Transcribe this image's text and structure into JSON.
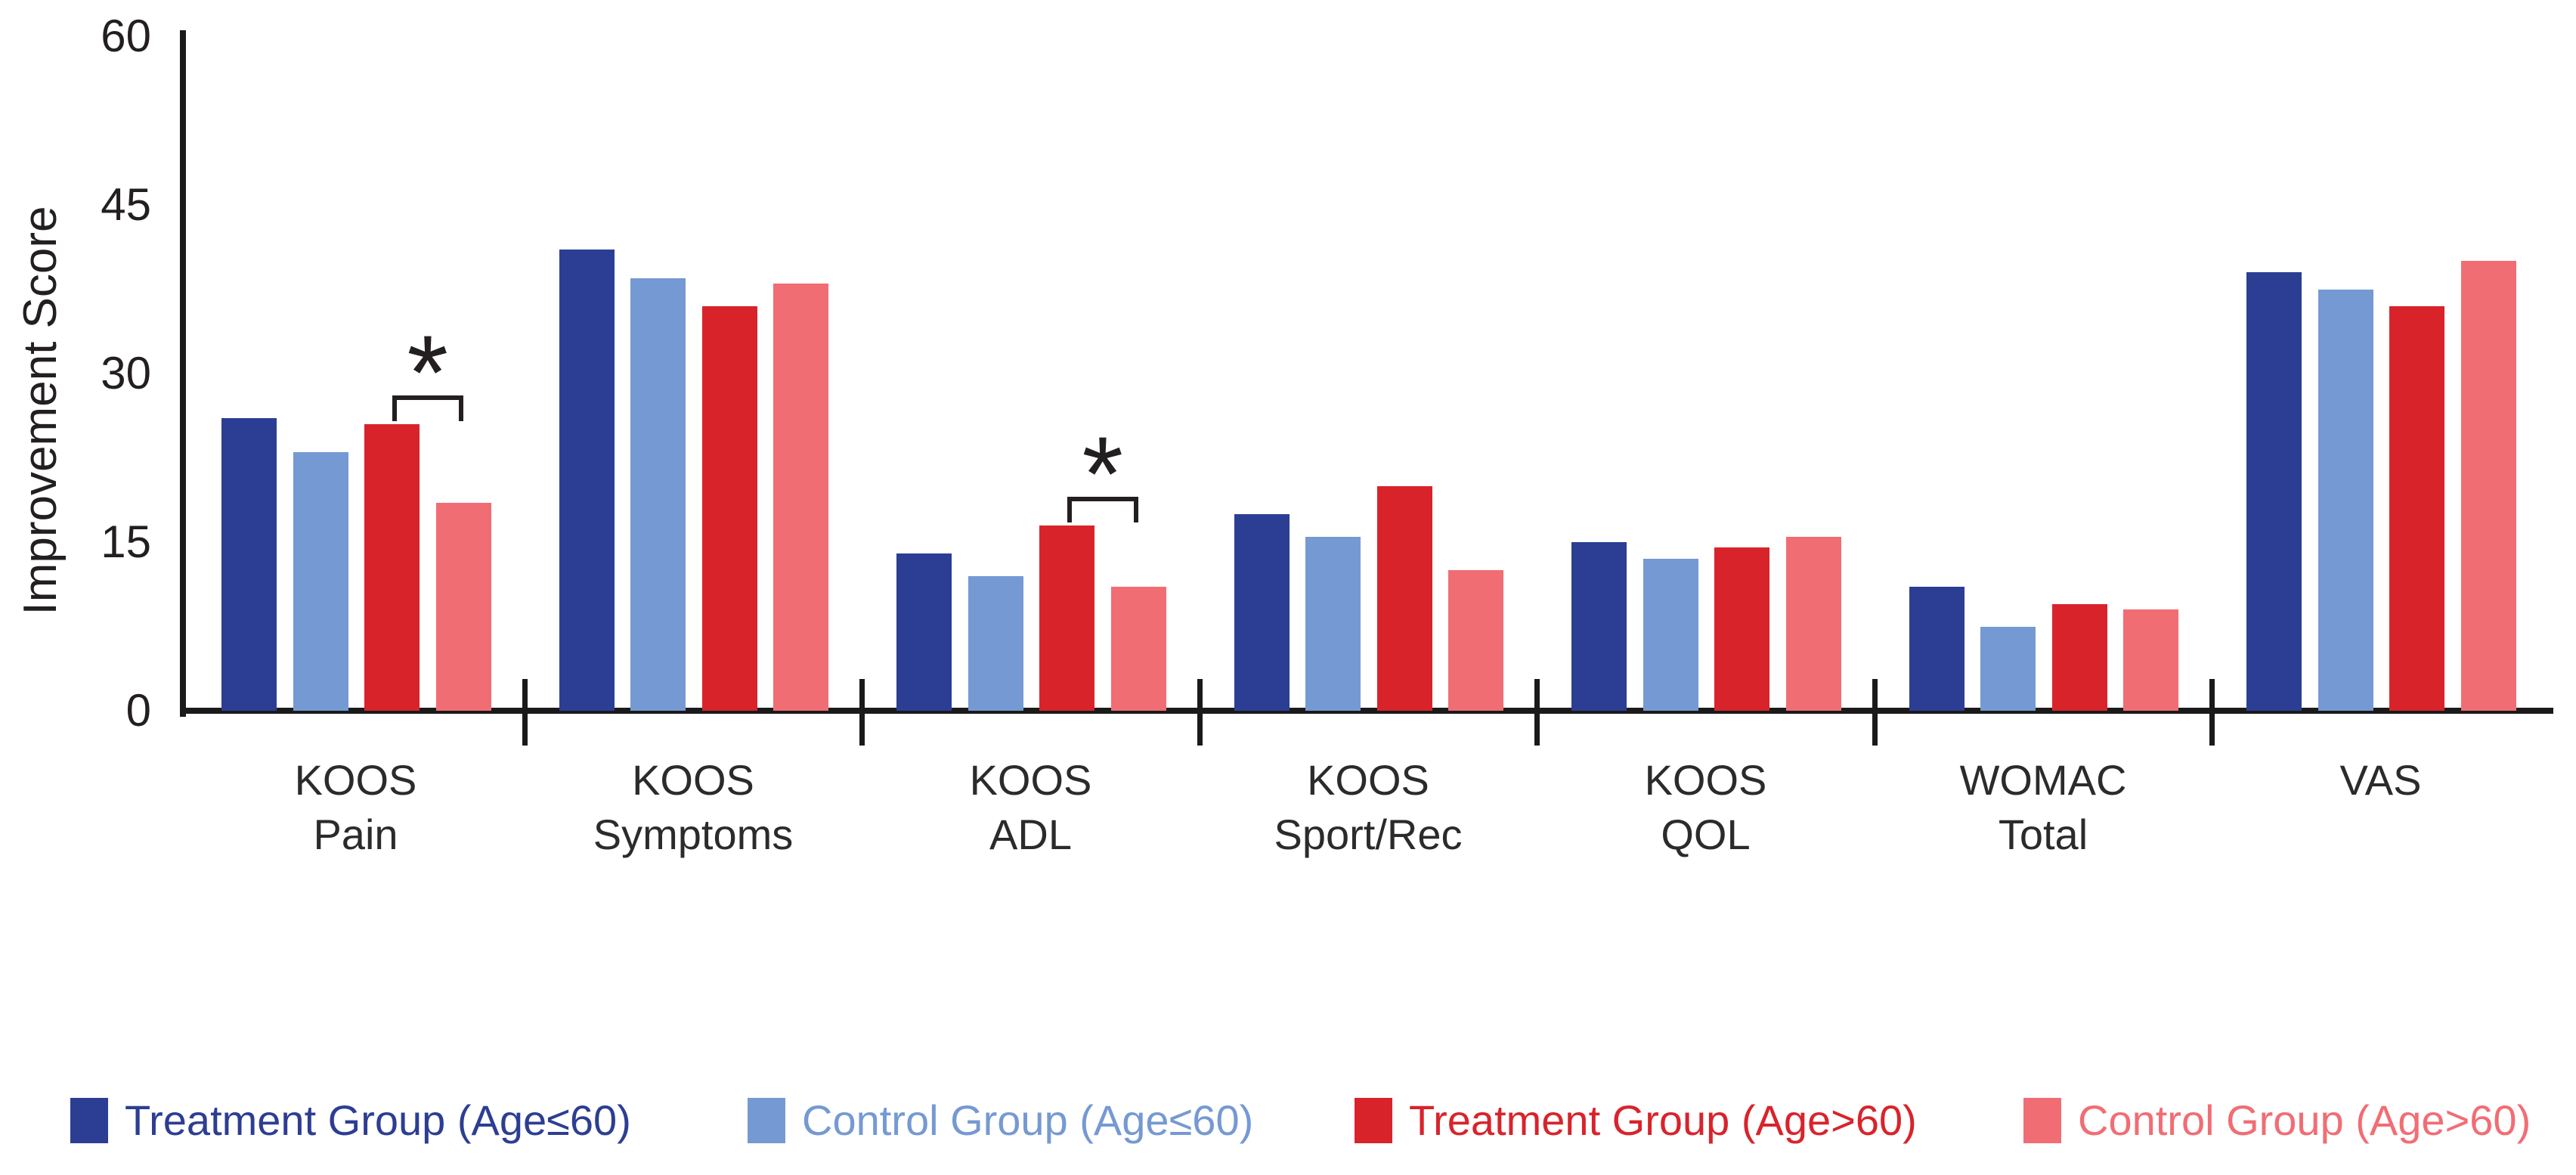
{
  "figure": {
    "background": "#ffffff",
    "text_color": "#231f20",
    "axis_color": "#1a1a1a"
  },
  "chart_data": {
    "type": "bar",
    "title": "",
    "xlabel": "",
    "ylabel": "Improvement Score",
    "ylim": [
      0,
      60
    ],
    "yticks": [
      0,
      15,
      30,
      45,
      60
    ],
    "grid": false,
    "legend_position": "bottom",
    "categories": [
      {
        "id": "koos-pain",
        "line1": "KOOS",
        "line2": "Pain"
      },
      {
        "id": "koos-symptoms",
        "line1": "KOOS",
        "line2": "Symptoms"
      },
      {
        "id": "koos-adl",
        "line1": "KOOS",
        "line2": "ADL"
      },
      {
        "id": "koos-sport-rec",
        "line1": "KOOS",
        "line2": "Sport/Rec"
      },
      {
        "id": "koos-qol",
        "line1": "KOOS",
        "line2": "QOL"
      },
      {
        "id": "womac-total",
        "line1": "WOMAC",
        "line2": "Total"
      },
      {
        "id": "vas",
        "line1": "VAS",
        "line2": ""
      }
    ],
    "series": [
      {
        "id": "treatment-le60",
        "name": "Treatment Group (Age≤60)",
        "color": "#2c3e93",
        "values": [
          26,
          41,
          14,
          17.5,
          15,
          11,
          39
        ]
      },
      {
        "id": "control-le60",
        "name": "Control Group (Age≤60)",
        "color": "#7599d3",
        "values": [
          23,
          38.5,
          12,
          15.5,
          13.5,
          7.5,
          37.5
        ]
      },
      {
        "id": "treatment-gt60",
        "name": "Treatment Group (Age>60)",
        "color": "#d9232b",
        "values": [
          25.5,
          36,
          16.5,
          20,
          14.5,
          9.5,
          36
        ]
      },
      {
        "id": "control-gt60",
        "name": "Control Group (Age>60)",
        "color": "#f16d74",
        "values": [
          18.5,
          38,
          11,
          12.5,
          15.5,
          9,
          40
        ]
      }
    ],
    "annotations": [
      {
        "category_index": 0,
        "between_series": [
          2,
          3
        ],
        "symbol": "*"
      },
      {
        "category_index": 2,
        "between_series": [
          2,
          3
        ],
        "symbol": "*"
      }
    ]
  }
}
